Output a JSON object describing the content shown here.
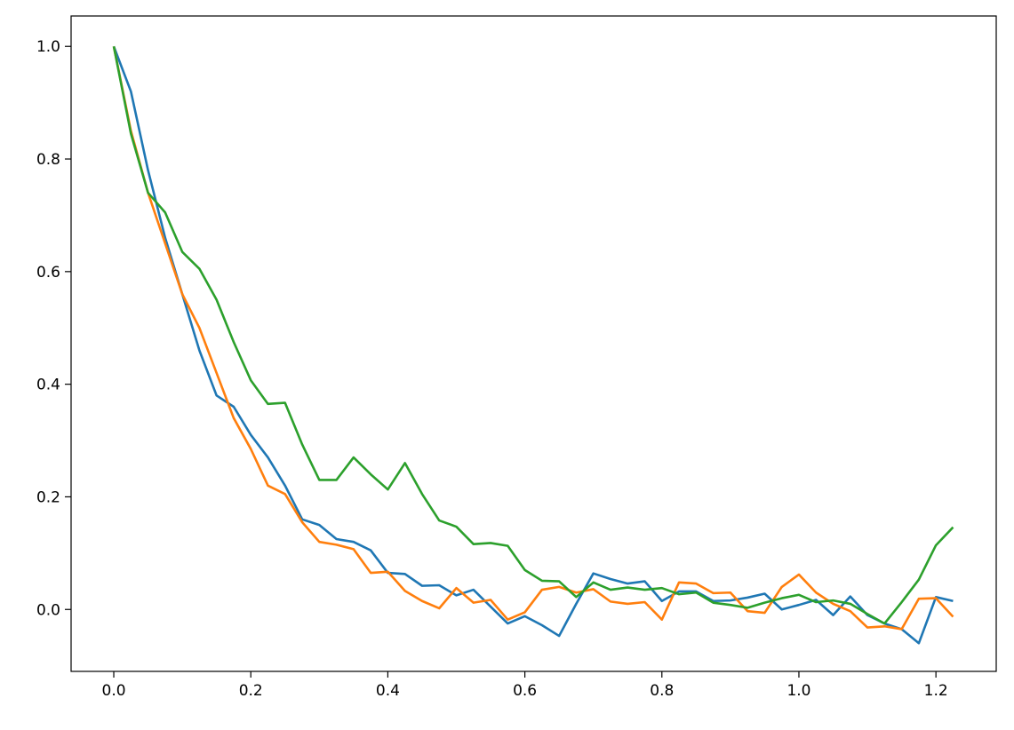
{
  "chart_data": {
    "type": "line",
    "x": [
      0,
      0.025,
      0.05,
      0.075,
      0.1,
      0.125,
      0.15,
      0.175,
      0.2,
      0.225,
      0.25,
      0.275,
      0.3,
      0.325,
      0.35,
      0.375,
      0.4,
      0.425,
      0.45,
      0.475,
      0.5,
      0.525,
      0.55,
      0.575,
      0.6,
      0.625,
      0.65,
      0.675,
      0.7,
      0.725,
      0.75,
      0.775,
      0.8,
      0.825,
      0.85,
      0.875,
      0.9,
      0.925,
      0.95,
      0.975,
      1.0,
      1.025,
      1.05,
      1.075,
      1.1,
      1.125,
      1.15,
      1.175,
      1.2,
      1.225
    ],
    "series": [
      {
        "color": "#1f77b4",
        "values": [
          1.0,
          0.92,
          0.78,
          0.66,
          0.56,
          0.46,
          0.38,
          0.36,
          0.31,
          0.27,
          0.22,
          0.16,
          0.15,
          0.125,
          0.12,
          0.105,
          0.065,
          0.063,
          0.042,
          0.043,
          0.025,
          0.035,
          0.005,
          -0.025,
          -0.012,
          -0.028,
          -0.047,
          0.01,
          0.064,
          0.054,
          0.046,
          0.05,
          0.015,
          0.032,
          0.032,
          0.015,
          0.016,
          0.021,
          0.028,
          0.0,
          0.008,
          0.017,
          -0.01,
          0.023,
          -0.01,
          -0.025,
          -0.035,
          -0.06,
          0.022,
          0.015
        ]
      },
      {
        "color": "#ff7f0e",
        "values": [
          1.0,
          0.85,
          0.74,
          0.65,
          0.56,
          0.5,
          0.42,
          0.34,
          0.285,
          0.22,
          0.205,
          0.155,
          0.12,
          0.115,
          0.107,
          0.065,
          0.067,
          0.033,
          0.015,
          0.002,
          0.038,
          0.012,
          0.017,
          -0.018,
          -0.005,
          0.035,
          0.04,
          0.03,
          0.036,
          0.014,
          0.01,
          0.013,
          -0.018,
          0.048,
          0.046,
          0.029,
          0.03,
          -0.003,
          -0.006,
          0.04,
          0.062,
          0.03,
          0.01,
          -0.003,
          -0.032,
          -0.03,
          -0.035,
          0.019,
          0.02,
          -0.013
        ]
      },
      {
        "color": "#2ca02c",
        "values": [
          1.0,
          0.845,
          0.74,
          0.705,
          0.635,
          0.605,
          0.55,
          0.475,
          0.407,
          0.365,
          0.367,
          0.293,
          0.23,
          0.23,
          0.27,
          0.24,
          0.213,
          0.26,
          0.205,
          0.158,
          0.147,
          0.116,
          0.118,
          0.113,
          0.07,
          0.051,
          0.05,
          0.022,
          0.048,
          0.035,
          0.039,
          0.035,
          0.038,
          0.027,
          0.03,
          0.012,
          0.008,
          0.003,
          0.012,
          0.02,
          0.026,
          0.013,
          0.016,
          0.01,
          -0.008,
          -0.025,
          0.013,
          0.053,
          0.114,
          0.146
        ]
      }
    ],
    "xlim": [
      -0.0623,
      1.288
    ],
    "ylim": [
      -0.11,
      1.054
    ],
    "xticks": [
      {
        "value": 0,
        "label": "0.0"
      },
      0.2,
      0.4,
      0.6,
      0.8,
      {
        "value": 1,
        "label": "1.0"
      },
      1.2
    ],
    "yticks": [
      {
        "value": 0,
        "label": "0.0"
      },
      0.2,
      0.4,
      0.6,
      0.8,
      {
        "value": 1,
        "label": "1.0"
      }
    ],
    "grid": false
  }
}
